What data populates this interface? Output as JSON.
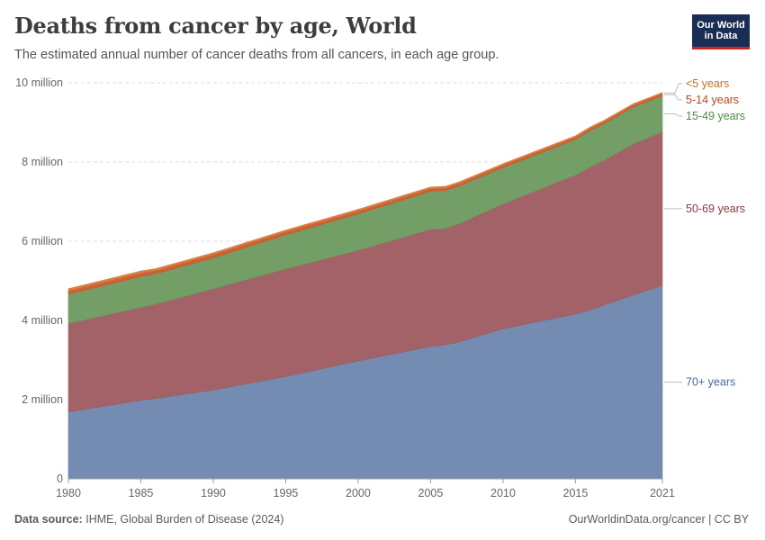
{
  "header": {
    "title": "Deaths from cancer by age, World",
    "subtitle": "The estimated annual number of cancer deaths from all cancers, in each age group."
  },
  "logo": {
    "line1": "Our World",
    "line2": "in Data"
  },
  "footer": {
    "source_label": "Data source:",
    "source_text": "IHME, Global Burden of Disease (2024)",
    "url_text": "OurWorldinData.org/cancer | CC BY"
  },
  "colors": {
    "70+ years": "#6d86ae",
    "50-69 years": "#9e5a5f",
    "15-49 years": "#6b9a5e",
    "5-14 years": "#c8592c",
    "<5 years": "#d97a3a",
    "label_70": "#4a6aa3",
    "label_50": "#8b3a40",
    "label_15": "#4e8a45",
    "label_5": "#b8481c",
    "label_u5": "#c8701f"
  },
  "chart_data": {
    "type": "area",
    "stacked": true,
    "title": "Deaths from cancer by age, World",
    "xlabel": "",
    "ylabel": "",
    "xlim": [
      1980,
      2021
    ],
    "ylim": [
      0,
      10000000
    ],
    "x_ticks": [
      1980,
      1985,
      1990,
      1995,
      2000,
      2005,
      2010,
      2015,
      2021
    ],
    "y_ticks": [
      0,
      2000000,
      4000000,
      6000000,
      8000000,
      10000000
    ],
    "y_tick_labels": [
      "0",
      "2 million",
      "4 million",
      "6 million",
      "8 million",
      "10 million"
    ],
    "grid": "horizontal dashed",
    "legend": "right, labels at series end",
    "x": [
      1980,
      1985,
      1986,
      1990,
      1995,
      2000,
      2005,
      2006,
      2007,
      2010,
      2015,
      2016,
      2017,
      2019,
      2021
    ],
    "series": [
      {
        "name": "70+ years",
        "values": [
          1690000,
          1980000,
          2030000,
          2240000,
          2580000,
          2980000,
          3340000,
          3380000,
          3460000,
          3790000,
          4160000,
          4260000,
          4390000,
          4640000,
          4880000
        ]
      },
      {
        "name": "50-69 years",
        "values": [
          2230000,
          2350000,
          2380000,
          2560000,
          2720000,
          2790000,
          2960000,
          2940000,
          2990000,
          3150000,
          3510000,
          3610000,
          3660000,
          3820000,
          3880000
        ]
      },
      {
        "name": "15-49 years",
        "values": [
          740000,
          780000,
          760000,
          780000,
          860000,
          920000,
          960000,
          960000,
          950000,
          920000,
          900000,
          920000,
          920000,
          930000,
          910000
        ]
      },
      {
        "name": "5-14 years",
        "values": [
          90000,
          90000,
          90000,
          85000,
          80000,
          75000,
          70000,
          68000,
          66000,
          62000,
          58000,
          57000,
          56000,
          55000,
          54000
        ]
      },
      {
        "name": "<5 years",
        "values": [
          50000,
          48000,
          47000,
          45000,
          42000,
          40000,
          38000,
          37000,
          36000,
          35000,
          33000,
          33000,
          32000,
          31000,
          30000
        ]
      }
    ]
  }
}
